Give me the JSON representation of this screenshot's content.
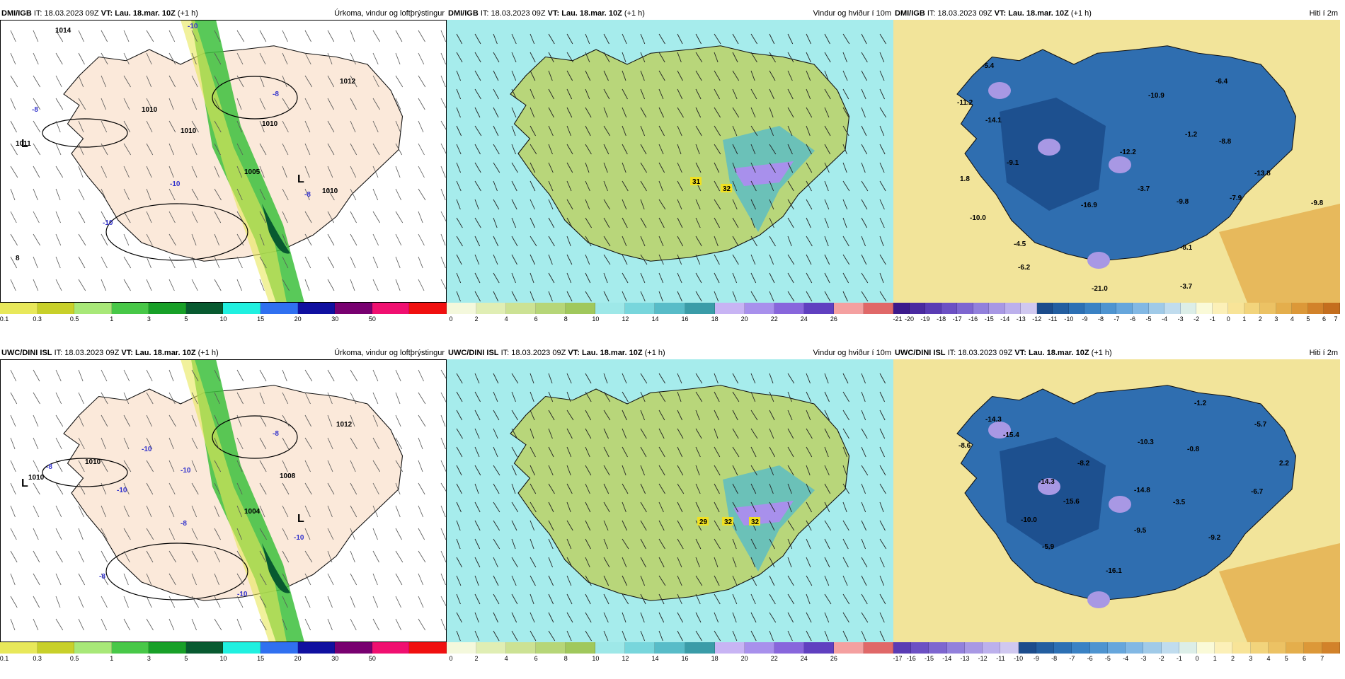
{
  "panels": [
    {
      "id": "p1",
      "model": "DMI/IGB",
      "it_label": "IT:",
      "it": "18.03.2023 09Z",
      "vt_label": "VT:",
      "vt": "Lau. 18.mar. 10Z",
      "lead": "(+1 h)",
      "title": "Úrkoma, vindur og loftþrýstingur",
      "kind": "precip",
      "colorbar": {
        "colors": [
          "#e8e85a",
          "#c8d02a",
          "#a8e878",
          "#48c848",
          "#18a028",
          "#085a30",
          "#20f0e0",
          "#3070f0",
          "#1010a0",
          "#780070",
          "#f01070",
          "#f01010"
        ],
        "ticks": [
          "0.1",
          "0.3",
          "0.5",
          "1",
          "3",
          "5",
          "10",
          "15",
          "20",
          "30",
          "50"
        ]
      },
      "labels": [
        "1014",
        "1011",
        "1005",
        "1012",
        "1010",
        "1010",
        "1010",
        "-10",
        "-10",
        "-8",
        "-8",
        "-10",
        "-8",
        "1010",
        "8"
      ]
    },
    {
      "id": "p2",
      "model": "DMI/IGB",
      "it_label": "IT:",
      "it": "18.03.2023 09Z",
      "vt_label": "VT:",
      "vt": "Lau. 18.mar. 10Z",
      "lead": "(+1 h)",
      "title": "Vindur og hviður í 10m",
      "kind": "wind",
      "colorbar": {
        "colors": [
          "#f4f8dc",
          "#e0eeb4",
          "#cce294",
          "#b6d678",
          "#a0c85c",
          "#9ee8e8",
          "#78d6dc",
          "#58bcc8",
          "#3a9ca8",
          "#c8b4f4",
          "#a890ec",
          "#8866dc",
          "#6040c0",
          "#f4a0a0",
          "#e06868"
        ],
        "ticks": [
          "0",
          "2",
          "4",
          "6",
          "8",
          "10",
          "12",
          "14",
          "16",
          "18",
          "20",
          "22",
          "24",
          "26"
        ]
      },
      "labels": [
        "31",
        "32"
      ]
    },
    {
      "id": "p3",
      "model": "DMI/IGB",
      "it_label": "IT:",
      "it": "18.03.2023 09Z",
      "vt_label": "VT:",
      "vt": "Lau. 18.mar. 10Z",
      "lead": "(+1 h)",
      "title": "Hiti í 2m",
      "kind": "temp",
      "colorbar": {
        "colors": [
          "#3c1a8c",
          "#4a2aa0",
          "#5a3cb4",
          "#6c50c4",
          "#7e66d0",
          "#9280dc",
          "#a898e4",
          "#bcb0ec",
          "#d0c8f0",
          "#1c4c8c",
          "#235ea0",
          "#2c70b4",
          "#3a82c4",
          "#4e94d0",
          "#66a6dc",
          "#82b8e4",
          "#a0cae8",
          "#c0dcee",
          "#dceee8",
          "#fafad8",
          "#fcf0b8",
          "#f8e498",
          "#f2d47c",
          "#ecc264",
          "#e4ae4c",
          "#dc9838",
          "#d2822a",
          "#c46e1e"
        ],
        "ticks": [
          "-21",
          "-20",
          "-19",
          "-18",
          "-17",
          "-16",
          "-15",
          "-14",
          "-13",
          "-12",
          "-11",
          "-10",
          "-9",
          "-8",
          "-7",
          "-6",
          "-5",
          "-4",
          "-3",
          "-2",
          "-1",
          "0",
          "1",
          "2",
          "3",
          "4",
          "5",
          "6",
          "7"
        ]
      },
      "labels": [
        "-5.4",
        "-6.4",
        "-11.2",
        "-10.9",
        "-14.1",
        "-12.2",
        "-1.2",
        "-8.8",
        "-9.1",
        "-13.8",
        "1.8",
        "-9.8",
        "-16.9",
        "-3.7",
        "-7.9",
        "-9.8",
        "-10.0",
        "-4.5",
        "-8.1",
        "-6.2",
        "-21.0",
        "-3.7"
      ]
    },
    {
      "id": "p4",
      "model": "UWC/DINI ISL",
      "it_label": "IT:",
      "it": "18.03.2023 09Z",
      "vt_label": "VT:",
      "vt": "Lau. 18.mar. 10Z",
      "lead": "(+1 h)",
      "title": "Úrkoma, vindur og loftþrýstingur",
      "kind": "precip",
      "colorbar": {
        "colors": [
          "#e8e85a",
          "#c8d02a",
          "#a8e878",
          "#48c848",
          "#18a028",
          "#085a30",
          "#20f0e0",
          "#3070f0",
          "#1010a0",
          "#780070",
          "#f01070",
          "#f01010"
        ],
        "ticks": [
          "0.1",
          "0.3",
          "0.5",
          "1",
          "3",
          "5",
          "10",
          "15",
          "20",
          "30",
          "50"
        ]
      },
      "labels": [
        "1004",
        "1008",
        "1010",
        "1010",
        "1012",
        "-10",
        "-10",
        "-8",
        "-8",
        "-10",
        "-8",
        "-10",
        "-10",
        "-8"
      ]
    },
    {
      "id": "p5",
      "model": "UWC/DINI ISL",
      "it_label": "IT:",
      "it": "18.03.2023 09Z",
      "vt_label": "VT:",
      "vt": "Lau. 18.mar. 10Z",
      "lead": "(+1 h)",
      "title": "Vindur og hviður í 10m",
      "kind": "wind",
      "colorbar": {
        "colors": [
          "#f4f8dc",
          "#e0eeb4",
          "#cce294",
          "#b6d678",
          "#a0c85c",
          "#9ee8e8",
          "#78d6dc",
          "#58bcc8",
          "#3a9ca8",
          "#c8b4f4",
          "#a890ec",
          "#8866dc",
          "#6040c0",
          "#f4a0a0",
          "#e06868"
        ],
        "ticks": [
          "0",
          "2",
          "4",
          "6",
          "8",
          "10",
          "12",
          "14",
          "16",
          "18",
          "20",
          "22",
          "24",
          "26"
        ]
      },
      "labels": [
        "29",
        "32",
        "32"
      ]
    },
    {
      "id": "p6",
      "model": "UWC/DINI ISL",
      "it_label": "IT:",
      "it": "18.03.2023 09Z",
      "vt_label": "VT:",
      "vt": "Lau. 18.mar. 10Z",
      "lead": "(+1 h)",
      "title": "Hiti í 2m",
      "kind": "temp",
      "colorbar": {
        "colors": [
          "#5a3cb4",
          "#6c50c4",
          "#7e66d0",
          "#9280dc",
          "#a898e4",
          "#bcb0ec",
          "#d0c8f0",
          "#1c4c8c",
          "#235ea0",
          "#2c70b4",
          "#3a82c4",
          "#4e94d0",
          "#66a6dc",
          "#82b8e4",
          "#a0cae8",
          "#c0dcee",
          "#dceee8",
          "#fafad8",
          "#fcf0b8",
          "#f8e498",
          "#f2d47c",
          "#ecc264",
          "#e4ae4c",
          "#dc9838",
          "#d2822a"
        ],
        "ticks": [
          "-17",
          "-16",
          "-15",
          "-14",
          "-13",
          "-12",
          "-11",
          "-10",
          "-9",
          "-8",
          "-7",
          "-6",
          "-5",
          "-4",
          "-3",
          "-2",
          "-1",
          "0",
          "1",
          "2",
          "3",
          "4",
          "5",
          "6",
          "7"
        ]
      },
      "labels": [
        "-1.2",
        "-14.3",
        "-5.7",
        "-15.4",
        "-8.6",
        "-10.3",
        "-8.2",
        "-0.8",
        "2.2",
        "-14.3",
        "-14.8",
        "-6.7",
        "-15.6",
        "-3.5",
        "-10.0",
        "-9.5",
        "-9.2",
        "-5.9",
        "-16.1"
      ]
    }
  ]
}
